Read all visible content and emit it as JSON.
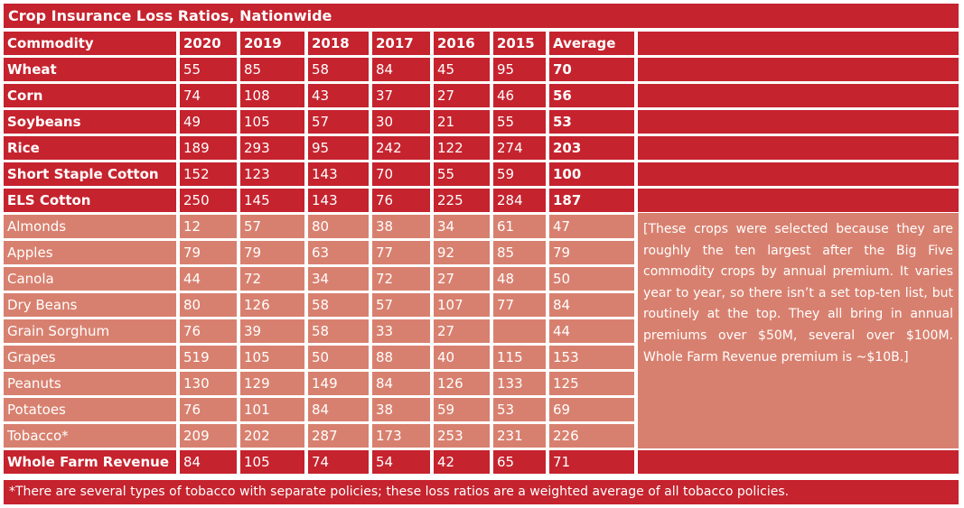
{
  "chart_data": {
    "type": "table",
    "title": "Crop Insurance Loss Ratios, Nationwide",
    "columns": [
      "Commodity",
      "2020",
      "2019",
      "2018",
      "2017",
      "2016",
      "2015",
      "Average"
    ],
    "rows": [
      {
        "commodity": "Wheat",
        "values": [
          "55",
          "85",
          "58",
          "84",
          "45",
          "95",
          "70"
        ],
        "group": "big-five"
      },
      {
        "commodity": "Corn",
        "values": [
          "74",
          "108",
          "43",
          "37",
          "27",
          "46",
          "56"
        ],
        "group": "big-five"
      },
      {
        "commodity": "Soybeans",
        "values": [
          "49",
          "105",
          "57",
          "30",
          "21",
          "55",
          "53"
        ],
        "group": "big-five"
      },
      {
        "commodity": "Rice",
        "values": [
          "189",
          "293",
          "95",
          "242",
          "122",
          "274",
          "203"
        ],
        "group": "big-five"
      },
      {
        "commodity": "Short Staple Cotton",
        "values": [
          "152",
          "123",
          "143",
          "70",
          "55",
          "59",
          "100"
        ],
        "group": "big-five"
      },
      {
        "commodity": "ELS Cotton",
        "values": [
          "250",
          "145",
          "143",
          "76",
          "225",
          "284",
          "187"
        ],
        "group": "big-five"
      },
      {
        "commodity": "Almonds",
        "values": [
          "12",
          "57",
          "80",
          "38",
          "34",
          "61",
          "47"
        ],
        "group": "other"
      },
      {
        "commodity": "Apples",
        "values": [
          "79",
          "79",
          "63",
          "77",
          "92",
          "85",
          "79"
        ],
        "group": "other"
      },
      {
        "commodity": "Canola",
        "values": [
          "44",
          "72",
          "34",
          "72",
          "27",
          "48",
          "50"
        ],
        "group": "other"
      },
      {
        "commodity": "Dry Beans",
        "values": [
          "80",
          "126",
          "58",
          "57",
          "107",
          "77",
          "84"
        ],
        "group": "other"
      },
      {
        "commodity": "Grain Sorghum",
        "values": [
          "76",
          "39",
          "58",
          "33",
          "27",
          "",
          "44"
        ],
        "group": "other"
      },
      {
        "commodity": "Grapes",
        "values": [
          "519",
          "105",
          "50",
          "88",
          "40",
          "115",
          "153"
        ],
        "group": "other"
      },
      {
        "commodity": "Peanuts",
        "values": [
          "130",
          "129",
          "149",
          "84",
          "126",
          "133",
          "125"
        ],
        "group": "other"
      },
      {
        "commodity": "Potatoes",
        "values": [
          "76",
          "101",
          "84",
          "38",
          "59",
          "53",
          "69"
        ],
        "group": "other"
      },
      {
        "commodity": "Tobacco*",
        "values": [
          "209",
          "202",
          "287",
          "173",
          "253",
          "231",
          "226"
        ],
        "group": "other"
      },
      {
        "commodity": "Whole Farm Revenue",
        "values": [
          "84",
          "105",
          "74",
          "54",
          "42",
          "65",
          "71"
        ],
        "group": "whole-farm"
      }
    ],
    "note": "[These crops were selected because they are roughly the ten largest after the Big Five commodity crops by annual premium. It varies year to year, so there isn’t a set top-ten list, but routinely at the top. They all bring in annual premiums over $50M, several over $100M. Whole Farm Revenue premium is ~$10B.]",
    "footnote": "*There are several types of tobacco with separate policies; these loss ratios are a weighted average of all tobacco policies."
  },
  "colors": {
    "dark_red": "#c5232e",
    "salmon": "#d8806f",
    "text": "#ffffff"
  }
}
